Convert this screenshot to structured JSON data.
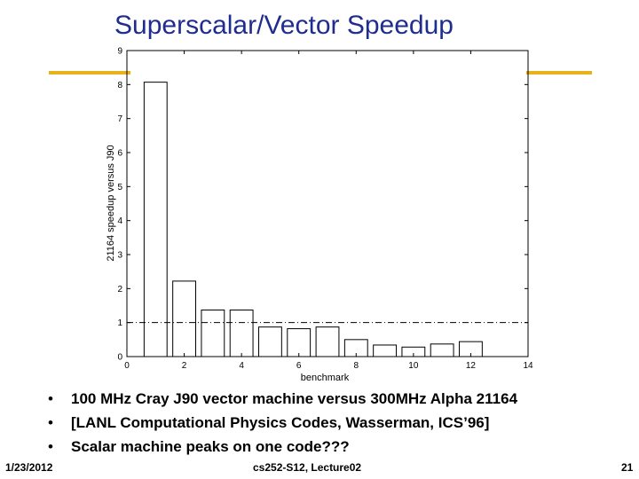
{
  "slide": {
    "title": "Superscalar/Vector Speedup",
    "bullets": [
      "100 MHz Cray J90 vector machine versus 300MHz Alpha 21164",
      "[LANL Computational Physics Codes, Wasserman, ICS’96]",
      "Scalar machine peaks on one code???"
    ],
    "bullet_symbol": "•",
    "footer": {
      "date": "1/23/2012",
      "course": "cs252-S12, Lecture02",
      "page": "21"
    },
    "accent_color": "#e8b21d",
    "title_color": "#1f2d8f"
  },
  "chart_data": {
    "type": "bar",
    "title": "",
    "xlabel": "benchmark",
    "ylabel": "21164 speedup versus J90",
    "x": [
      1,
      2,
      3,
      4,
      5,
      6,
      7,
      8,
      9,
      10,
      11,
      12
    ],
    "values": [
      8.07,
      2.22,
      1.37,
      1.37,
      0.87,
      0.82,
      0.87,
      0.5,
      0.34,
      0.28,
      0.37,
      0.44
    ],
    "xlim": [
      0,
      14
    ],
    "ylim": [
      0,
      9
    ],
    "xticks": [
      0,
      2,
      4,
      6,
      8,
      10,
      12,
      14
    ],
    "yticks": [
      0,
      1,
      2,
      3,
      4,
      5,
      6,
      7,
      8,
      9
    ],
    "reference_line": 1,
    "grid": false
  }
}
